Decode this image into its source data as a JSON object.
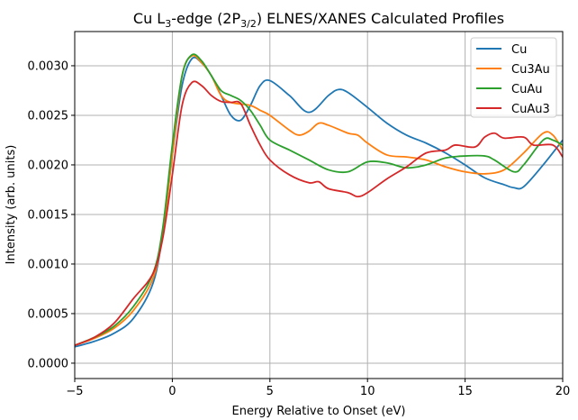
{
  "chart_data": {
    "type": "line",
    "title_parts": [
      "Cu L",
      "3",
      "-edge (2P",
      "3/2",
      ") ELNES/XANES Calculated Profiles"
    ],
    "xlabel": "Energy Relative to Onset (eV)",
    "ylabel": "Intensity (arb. units)",
    "xlim": [
      -5,
      20
    ],
    "ylim": [
      -0.000155,
      0.003345
    ],
    "xticks": [
      -5,
      0,
      5,
      10,
      15,
      20
    ],
    "xtick_labels": [
      "−5",
      "0",
      "5",
      "10",
      "15",
      "20"
    ],
    "yticks": [
      0,
      0.0005,
      0.001,
      0.0015,
      0.002,
      0.0025,
      0.003
    ],
    "ytick_labels": [
      "0.0000",
      "0.0005",
      "0.0010",
      "0.0015",
      "0.0020",
      "0.0025",
      "0.0030"
    ],
    "grid": true,
    "legend_position": "top-right",
    "series": [
      {
        "name": "Cu",
        "color": "#1f77b4",
        "x": [
          -5,
          -4,
          -3,
          -2,
          -1,
          -0.5,
          0,
          0.5,
          1,
          1.5,
          2,
          2.5,
          3,
          3.5,
          4,
          4.5,
          5,
          6,
          7,
          8,
          8.5,
          9,
          10,
          11,
          12,
          13,
          14,
          15,
          16,
          17,
          17.5,
          18,
          19,
          20
        ],
        "y": [
          0.000165,
          0.00022,
          0.0003,
          0.00045,
          0.0008,
          0.0013,
          0.0021,
          0.0028,
          0.00307,
          0.00303,
          0.0029,
          0.0027,
          0.0025,
          0.00245,
          0.0026,
          0.0028,
          0.00285,
          0.0027,
          0.00253,
          0.0027,
          0.00276,
          0.00273,
          0.00258,
          0.00242,
          0.0023,
          0.00222,
          0.00212,
          0.002,
          0.00187,
          0.0018,
          0.00177,
          0.00178,
          0.002,
          0.00225
        ]
      },
      {
        "name": "Cu3Au",
        "color": "#ff7f0e",
        "x": [
          -5,
          -4,
          -3,
          -2,
          -1,
          -0.5,
          0,
          0.5,
          1,
          1.5,
          2,
          2.5,
          3,
          4,
          4.5,
          5,
          6,
          6.5,
          7,
          7.5,
          8,
          9,
          9.5,
          10,
          11,
          12,
          13,
          14,
          15,
          16,
          17,
          18,
          19,
          19.5,
          20
        ],
        "y": [
          0.00018,
          0.00025,
          0.00035,
          0.00053,
          0.00085,
          0.0013,
          0.0021,
          0.0029,
          0.0031,
          0.00303,
          0.0029,
          0.0027,
          0.00263,
          0.0026,
          0.00255,
          0.0025,
          0.00235,
          0.0023,
          0.00234,
          0.00242,
          0.0024,
          0.00232,
          0.0023,
          0.00222,
          0.0021,
          0.00208,
          0.00205,
          0.00198,
          0.00193,
          0.00191,
          0.00195,
          0.00212,
          0.00232,
          0.0023,
          0.00215
        ]
      },
      {
        "name": "CuAu",
        "color": "#2ca02c",
        "x": [
          -5,
          -4,
          -3,
          -2,
          -1,
          -0.5,
          0,
          0.5,
          1,
          1.5,
          2,
          2.5,
          3,
          3.5,
          4,
          4.5,
          5,
          6,
          7,
          8,
          9,
          10,
          11,
          12,
          13,
          14,
          15,
          16,
          16.5,
          17.5,
          18,
          19,
          19.5,
          20
        ],
        "y": [
          0.00018,
          0.00026,
          0.00037,
          0.00057,
          0.0009,
          0.00135,
          0.0022,
          0.0029,
          0.00311,
          0.00305,
          0.0029,
          0.00275,
          0.0027,
          0.00265,
          0.00255,
          0.0024,
          0.00225,
          0.00215,
          0.00205,
          0.00195,
          0.00193,
          0.00203,
          0.00202,
          0.00197,
          0.002,
          0.00207,
          0.00209,
          0.00209,
          0.00205,
          0.00193,
          0.002,
          0.00225,
          0.00225,
          0.0022
        ]
      },
      {
        "name": "CuAu3",
        "color": "#d62728",
        "x": [
          -5,
          -4,
          -3,
          -2,
          -1,
          -0.5,
          0,
          0.5,
          1,
          1.5,
          2,
          2.5,
          3,
          3.5,
          4,
          4.5,
          5,
          6,
          7,
          7.5,
          8,
          9,
          9.5,
          10,
          11,
          12,
          13,
          14,
          14.5,
          15.5,
          16,
          16.5,
          17,
          18,
          18.5,
          19.5,
          20
        ],
        "y": [
          0.00018,
          0.00026,
          0.0004,
          0.00065,
          0.0009,
          0.00125,
          0.0019,
          0.0026,
          0.00283,
          0.0028,
          0.0027,
          0.00264,
          0.00263,
          0.00262,
          0.0024,
          0.0022,
          0.00205,
          0.0019,
          0.00182,
          0.00183,
          0.00176,
          0.00172,
          0.00168,
          0.00172,
          0.00186,
          0.00198,
          0.00212,
          0.00215,
          0.0022,
          0.00218,
          0.00228,
          0.00232,
          0.00227,
          0.00228,
          0.0022,
          0.0022,
          0.00208
        ]
      }
    ]
  }
}
